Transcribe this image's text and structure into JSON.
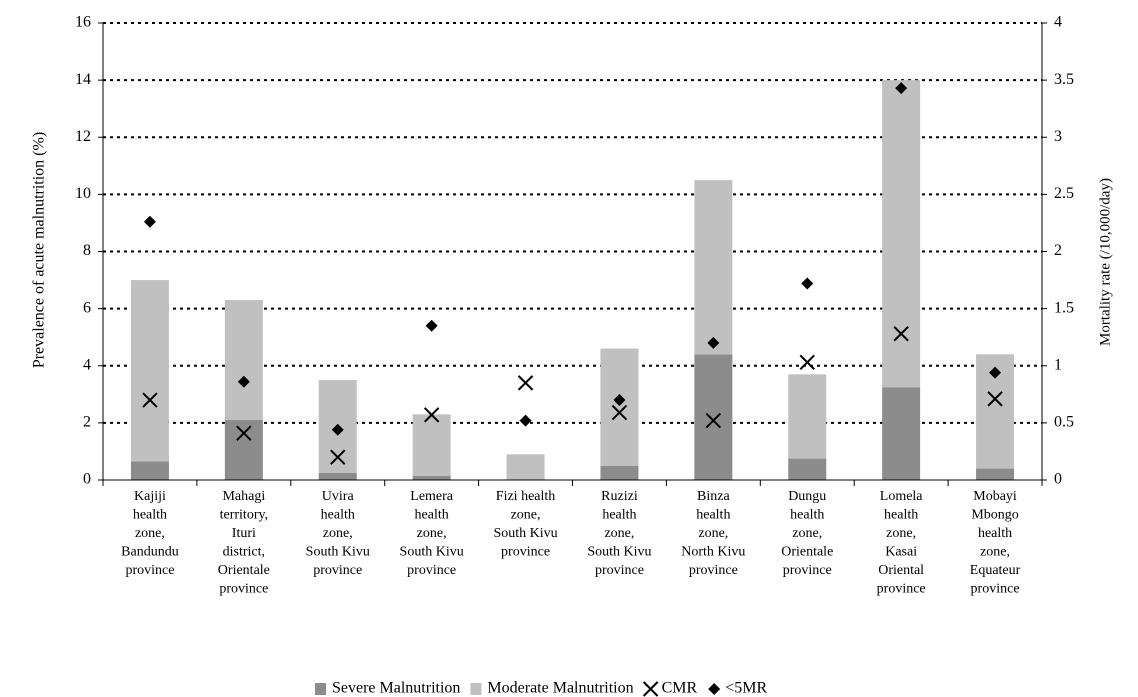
{
  "chart_data": {
    "type": "bar",
    "y_label": "Prevalence of acute malnutrition (%)",
    "y2_label": "Mortality rate (/10,000/day)",
    "categories": [
      [
        "Kajiji",
        "health",
        "zone,",
        "Bandundu",
        "province"
      ],
      [
        "Mahagi",
        "territory,",
        "Ituri",
        "district,",
        "Orientale",
        "province"
      ],
      [
        "Uvira",
        "health",
        "zone,",
        "South Kivu",
        "province"
      ],
      [
        "Lemera",
        "health",
        "zone,",
        "South Kivu",
        "province"
      ],
      [
        "Fizi health",
        "zone,",
        "South Kivu",
        "province"
      ],
      [
        "Ruzizi",
        "health",
        "zone,",
        "South Kivu",
        "province"
      ],
      [
        "Binza",
        "health",
        "zone,",
        "North Kivu",
        "province"
      ],
      [
        "Dungu",
        "health",
        "zone,",
        "Orientale",
        "province"
      ],
      [
        "Lomela",
        "health",
        "zone,",
        "Kasai",
        "Oriental",
        "province"
      ],
      [
        "Mobayi",
        "Mbongo",
        "health",
        "zone,",
        "Equateur",
        "province"
      ]
    ],
    "series": [
      {
        "name": "Severe Malnutrition",
        "color": "#8c8c8c",
        "mark": "stack",
        "values": [
          0.65,
          2.1,
          0.25,
          0.15,
          0,
          0.5,
          4.4,
          0.75,
          3.25,
          0.4
        ]
      },
      {
        "name": "Moderate Malnutrition",
        "color": "#c0c0c0",
        "mark": "stack",
        "values": [
          6.35,
          4.2,
          3.25,
          2.15,
          0.9,
          4.1,
          6.1,
          2.95,
          10.75,
          4.0
        ]
      },
      {
        "name": "CMR",
        "color": "#000000",
        "mark": "x",
        "axis": "y2",
        "values": [
          0.7,
          0.41,
          0.2,
          0.57,
          0.85,
          0.59,
          0.52,
          1.03,
          1.28,
          0.71
        ]
      },
      {
        "name": "<5MR",
        "color": "#000000",
        "mark": "diamond",
        "axis": "y2",
        "values": [
          2.26,
          0.86,
          0.44,
          1.35,
          0.52,
          0.7,
          1.2,
          1.72,
          3.43,
          0.94
        ]
      }
    ],
    "ylim": [
      0,
      16
    ],
    "yticks": [
      0,
      2,
      4,
      6,
      8,
      10,
      12,
      14,
      16
    ],
    "y2lim": [
      0,
      4
    ],
    "y2ticks": [
      0,
      0.5,
      1,
      1.5,
      2,
      2.5,
      3,
      3.5,
      4
    ],
    "grid": true,
    "legend": "bottom"
  }
}
